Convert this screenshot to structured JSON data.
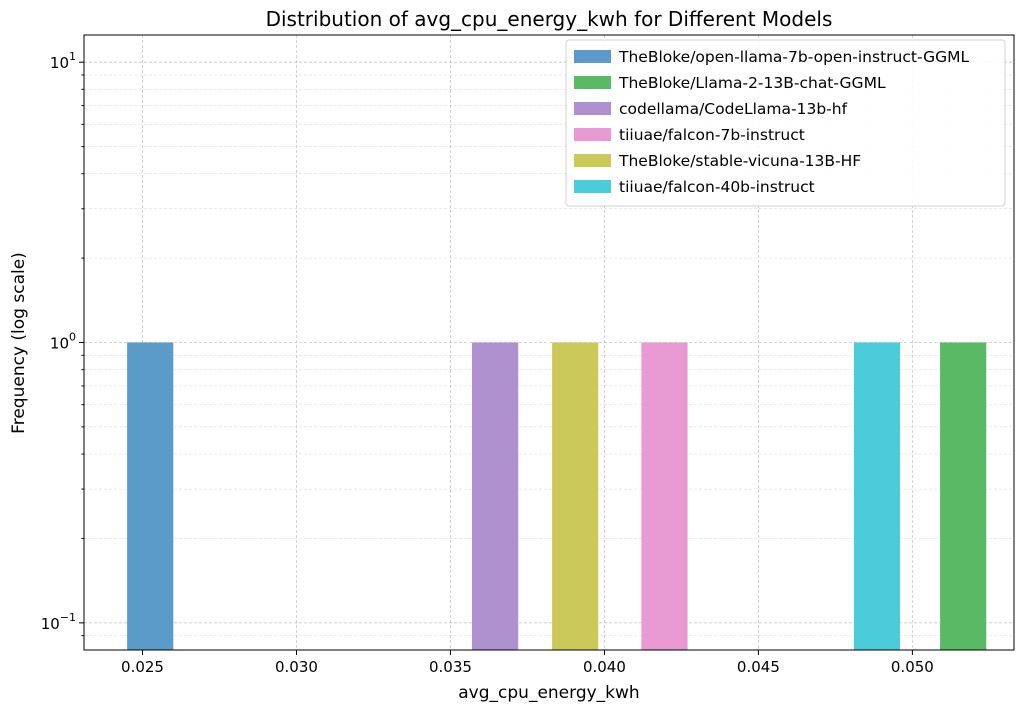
{
  "chart_data": {
    "type": "bar",
    "title": "Distribution of avg_cpu_energy_kwh for Different Models",
    "xlabel": "avg_cpu_energy_kwh",
    "ylabel": "Frequency (log scale)",
    "xlim": [
      0.0231,
      0.0533
    ],
    "ylim": [
      0.08,
      12.5
    ],
    "yscale": "log",
    "grid": true,
    "legend_position": "top-right",
    "x_ticks": [
      0.025,
      0.03,
      0.035,
      0.04,
      0.045,
      0.05
    ],
    "x_tick_labels": [
      "0.025",
      "0.030",
      "0.035",
      "0.040",
      "0.045",
      "0.050"
    ],
    "y_ticks": [
      {
        "value": 0.1,
        "base": "10",
        "exp": "−1"
      },
      {
        "value": 1,
        "base": "10",
        "exp": "0"
      },
      {
        "value": 10,
        "base": "10",
        "exp": "1"
      }
    ],
    "series": [
      {
        "name": " TheBloke/open-llama-7b-open-instruct-GGML",
        "color": "#5b9bc9",
        "bins": [
          {
            "x0": 0.0245,
            "x1": 0.026,
            "count": 1
          }
        ]
      },
      {
        "name": "TheBloke/Llama-2-13B-chat-GGML",
        "color": "#5ab964",
        "bins": [
          {
            "x0": 0.0509,
            "x1": 0.0524,
            "count": 1
          }
        ]
      },
      {
        "name": "codellama/CodeLlama-13b-hf",
        "color": "#ae90cf",
        "bins": [
          {
            "x0": 0.0357,
            "x1": 0.0372,
            "count": 1
          }
        ]
      },
      {
        "name": "tiiuae/falcon-7b-instruct",
        "color": "#ea9ad2",
        "bins": [
          {
            "x0": 0.0412,
            "x1": 0.0427,
            "count": 1
          }
        ]
      },
      {
        "name": "TheBloke/stable-vicuna-13B-HF",
        "color": "#cbc958",
        "bins": [
          {
            "x0": 0.0383,
            "x1": 0.0398,
            "count": 1
          }
        ]
      },
      {
        "name": "tiiuae/falcon-40b-instruct",
        "color": "#4ccbdb",
        "bins": [
          {
            "x0": 0.0481,
            "x1": 0.0496,
            "count": 1
          }
        ]
      }
    ]
  }
}
